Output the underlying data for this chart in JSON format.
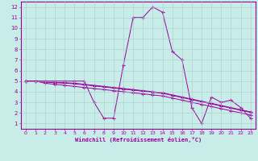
{
  "xlabel": "Windchill (Refroidissement éolien,°C)",
  "bg_color": "#c8ece8",
  "line_color": "#990099",
  "grid_color": "#aacccc",
  "xlim": [
    -0.5,
    23.5
  ],
  "ylim": [
    0.5,
    12.5
  ],
  "xticks": [
    0,
    1,
    2,
    3,
    4,
    5,
    6,
    7,
    8,
    9,
    10,
    11,
    12,
    13,
    14,
    15,
    16,
    17,
    18,
    19,
    20,
    21,
    22,
    23
  ],
  "yticks": [
    1,
    2,
    3,
    4,
    5,
    6,
    7,
    8,
    9,
    10,
    11,
    12
  ],
  "series": [
    [
      5,
      5,
      5,
      5,
      5,
      5,
      5,
      3,
      1.5,
      1.5,
      6.5,
      11,
      11,
      12,
      11.5,
      7.8,
      7,
      2.5,
      1,
      3.5,
      3,
      3.2,
      2.5,
      1.5
    ],
    [
      5,
      5,
      4.8,
      4.7,
      4.6,
      4.5,
      4.4,
      4.3,
      4.2,
      4.1,
      4.0,
      3.9,
      3.8,
      3.7,
      3.6,
      3.4,
      3.2,
      3.0,
      2.8,
      2.6,
      2.4,
      2.2,
      2.0,
      1.8
    ],
    [
      5,
      5,
      4.9,
      4.85,
      4.8,
      4.75,
      4.65,
      4.55,
      4.45,
      4.35,
      4.25,
      4.15,
      4.05,
      3.95,
      3.85,
      3.65,
      3.45,
      3.25,
      3.05,
      2.85,
      2.65,
      2.45,
      2.25,
      2.05
    ],
    [
      5,
      5,
      4.95,
      4.9,
      4.85,
      4.8,
      4.7,
      4.6,
      4.5,
      4.4,
      4.3,
      4.2,
      4.1,
      4.0,
      3.9,
      3.7,
      3.5,
      3.3,
      3.1,
      2.9,
      2.7,
      2.5,
      2.3,
      2.1
    ]
  ]
}
